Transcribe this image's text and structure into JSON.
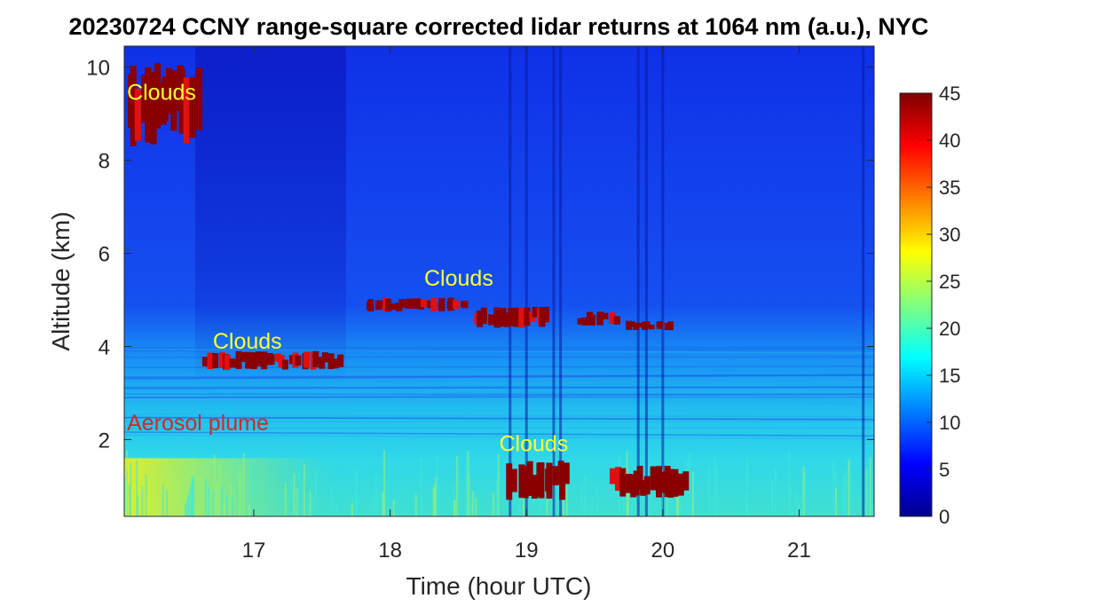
{
  "chart_data": {
    "type": "heatmap",
    "title": "20230724 CCNY range-square corrected lidar returns at 1064 nm (a.u.), NYC",
    "xlabel": "Time (hour UTC)",
    "ylabel": "Altitude (km)",
    "xlim": [
      16.05,
      21.55
    ],
    "ylim": [
      0.35,
      10.45
    ],
    "x_ticks": [
      "17",
      "18",
      "19",
      "20",
      "21"
    ],
    "x_tick_values": [
      17,
      18,
      19,
      20,
      21
    ],
    "y_ticks": [
      "2",
      "4",
      "6",
      "8",
      "10"
    ],
    "y_tick_values": [
      2,
      4,
      6,
      8,
      10
    ],
    "colorbar": {
      "colormap": "jet",
      "range": [
        0,
        45
      ],
      "ticks": [
        "0",
        "5",
        "10",
        "15",
        "20",
        "25",
        "30",
        "35",
        "40",
        "45"
      ],
      "tick_values": [
        0,
        5,
        10,
        15,
        20,
        25,
        30,
        35,
        40,
        45
      ]
    },
    "grid": false,
    "annotations": [
      {
        "text": "Clouds",
        "x": 16.07,
        "y": 9.3,
        "color": "#ffff33"
      },
      {
        "text": "Clouds",
        "x": 16.7,
        "y": 3.95,
        "color": "#ffff33"
      },
      {
        "text": "Clouds",
        "x": 18.25,
        "y": 5.3,
        "color": "#ffff33"
      },
      {
        "text": "Clouds",
        "x": 18.8,
        "y": 1.75,
        "color": "#ffff33"
      },
      {
        "text": "Aerosol plume",
        "x": 16.07,
        "y": 2.2,
        "color": "#d62728"
      }
    ],
    "cloud_features": [
      {
        "t0": 16.05,
        "t1": 16.58,
        "z0": 8.3,
        "z1": 10.1,
        "value": 45
      },
      {
        "t0": 16.62,
        "t1": 17.62,
        "z0": 3.5,
        "z1": 3.9,
        "value": 45
      },
      {
        "t0": 17.8,
        "t1": 18.55,
        "z0": 4.75,
        "z1": 5.05,
        "value": 45
      },
      {
        "t0": 18.6,
        "t1": 19.15,
        "z0": 4.4,
        "z1": 4.85,
        "value": 45
      },
      {
        "t0": 19.35,
        "t1": 19.65,
        "z0": 4.45,
        "z1": 4.75,
        "value": 45
      },
      {
        "t0": 19.7,
        "t1": 20.05,
        "z0": 4.35,
        "z1": 4.55,
        "value": 45
      },
      {
        "t0": 18.85,
        "t1": 19.3,
        "z0": 0.7,
        "z1": 1.55,
        "value": 45
      },
      {
        "t0": 19.6,
        "t1": 20.15,
        "z0": 0.75,
        "z1": 1.45,
        "value": 45
      }
    ],
    "aerosol_layers": [
      {
        "t0": 16.05,
        "t1": 21.55,
        "z0": 0.35,
        "z1": 2.0,
        "value": 16,
        "note": "boundary layer"
      },
      {
        "t0": 16.05,
        "t1": 17.6,
        "z0": 0.35,
        "z1": 1.6,
        "value": 25,
        "note": "Aerosol plume"
      },
      {
        "t0": 16.05,
        "t1": 21.55,
        "z0": 2.0,
        "z1": 3.9,
        "value": 12
      },
      {
        "t0": 16.05,
        "t1": 21.55,
        "z0": 3.9,
        "z1": 10.45,
        "value": 5
      }
    ]
  }
}
